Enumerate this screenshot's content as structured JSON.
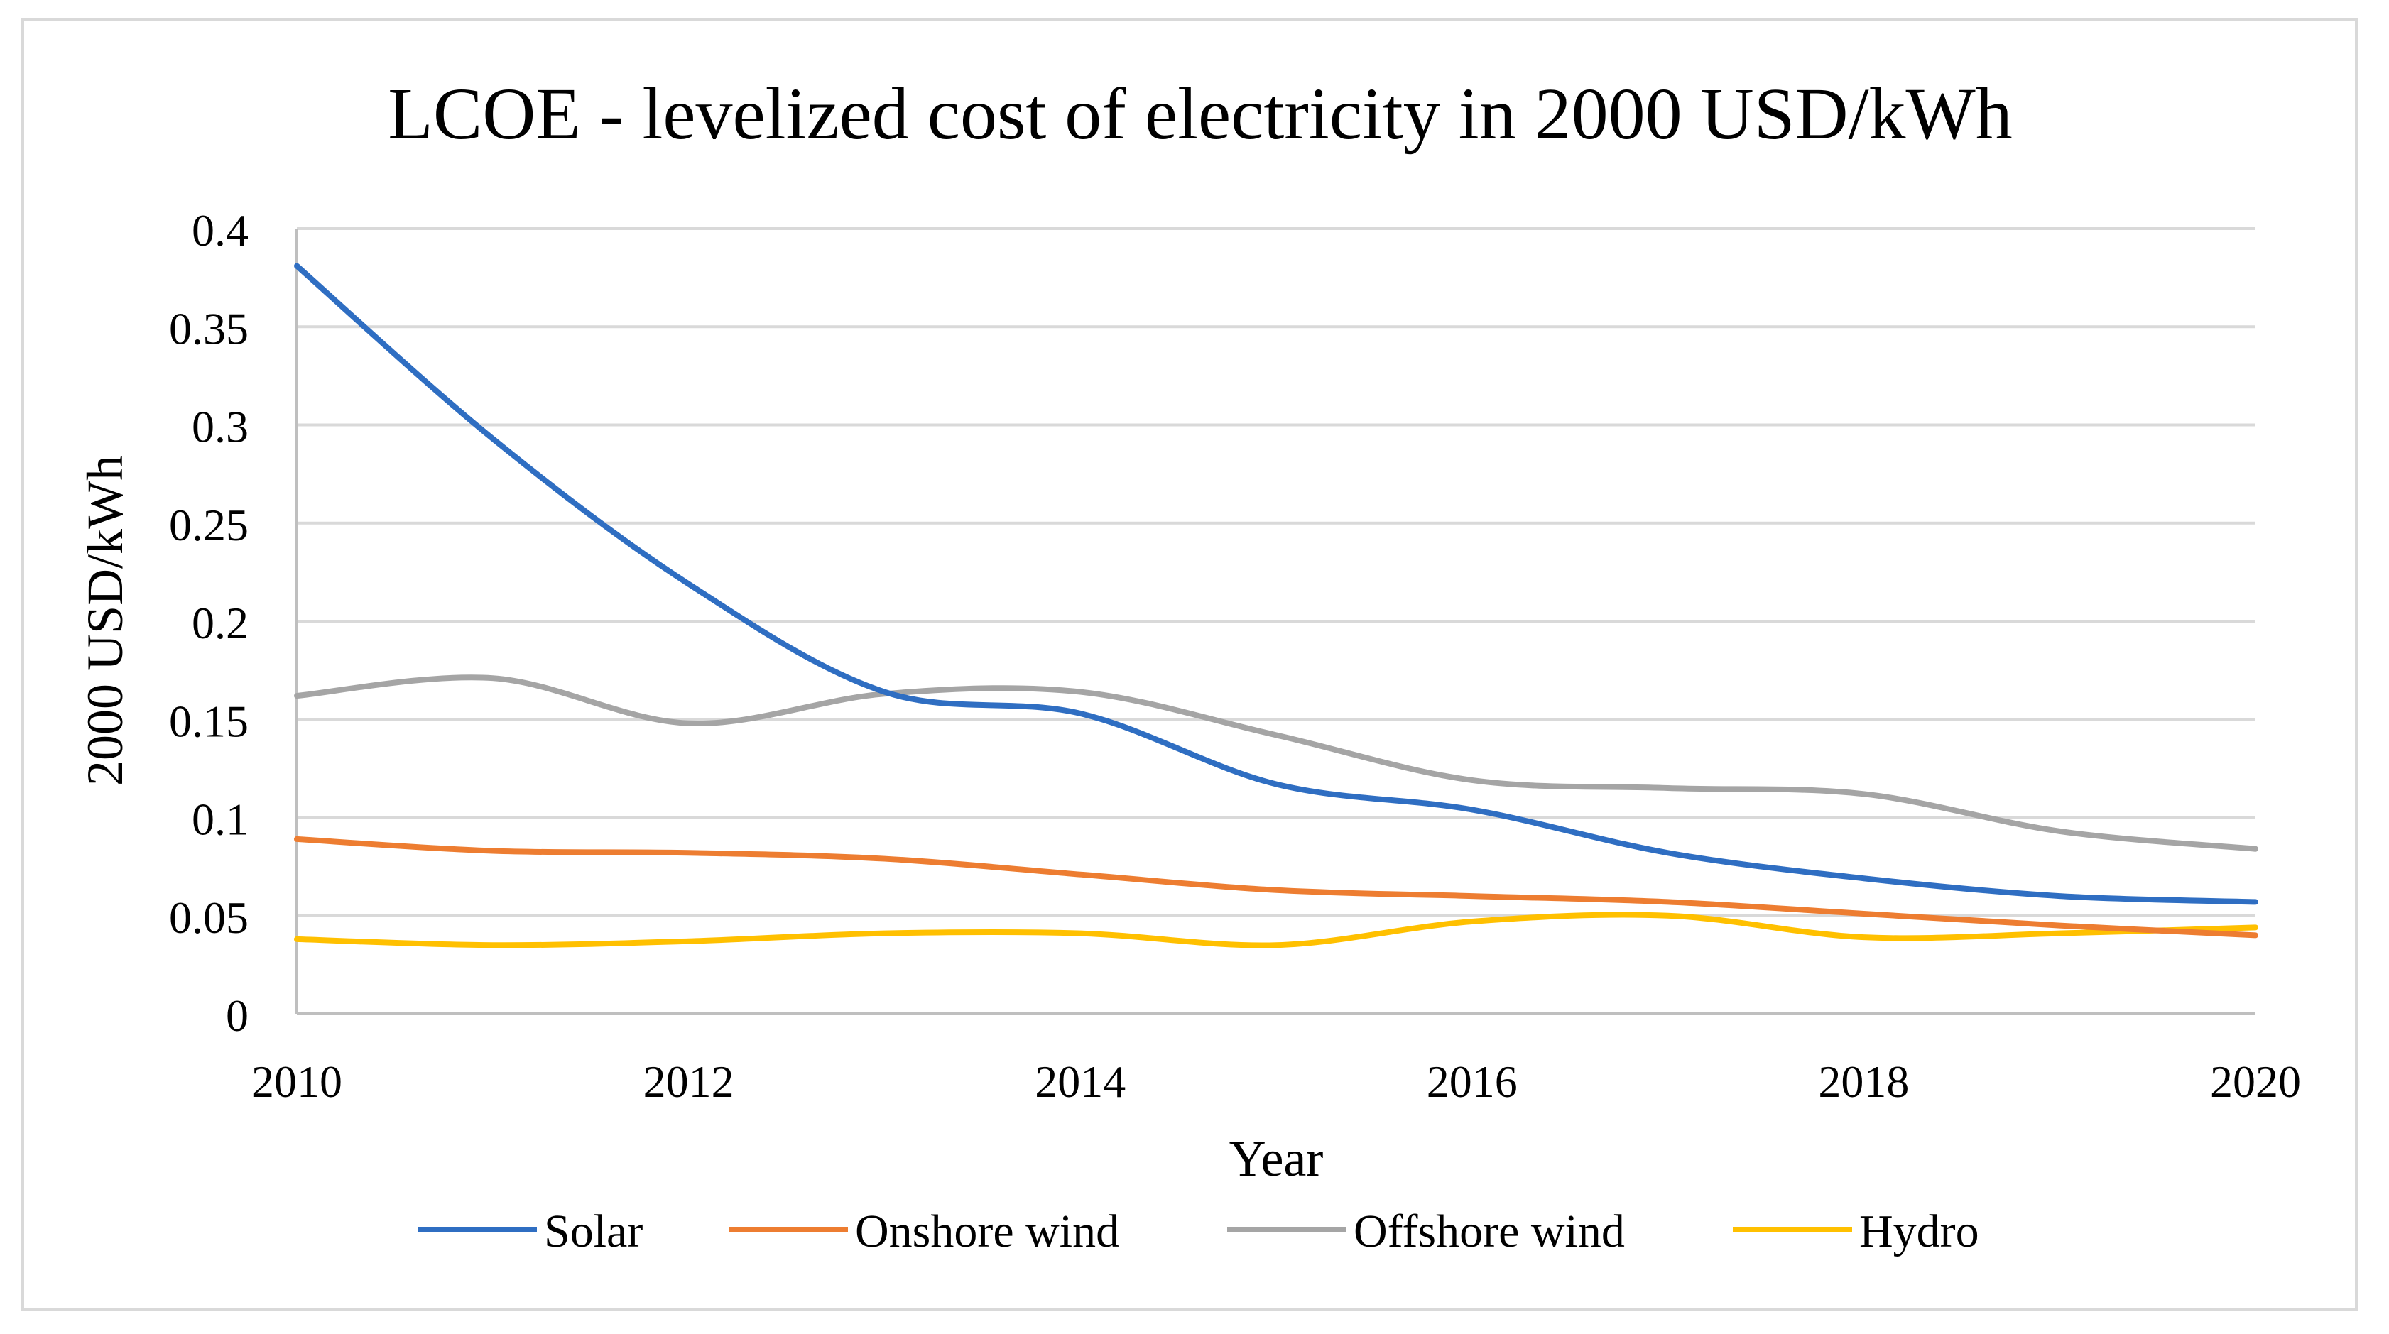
{
  "chart_data": {
    "type": "line",
    "title": "LCOE - levelized cost of electricity in 2000 USD/kWh",
    "xlabel": "Year",
    "ylabel": "2000 USD/kWh",
    "x": [
      2010,
      2011,
      2012,
      2013,
      2014,
      2015,
      2016,
      2017,
      2018,
      2019,
      2020
    ],
    "x_ticks": [
      2010,
      2012,
      2014,
      2016,
      2018,
      2020
    ],
    "y_ticks": [
      0,
      0.05,
      0.1,
      0.15,
      0.2,
      0.25,
      0.3,
      0.35,
      0.4
    ],
    "y_tick_labels": [
      "0",
      "0.05",
      "0.1",
      "0.15",
      "0.2",
      "0.25",
      "0.3",
      "0.35",
      "0.4"
    ],
    "xlim": [
      2010,
      2020
    ],
    "ylim": [
      0,
      0.4
    ],
    "grid": "horizontal",
    "legend_position": "bottom",
    "series": [
      {
        "name": "Solar",
        "color": "#2f6ec2",
        "values": [
          0.381,
          0.293,
          0.219,
          0.164,
          0.153,
          0.117,
          0.104,
          0.082,
          0.069,
          0.06,
          0.057
        ]
      },
      {
        "name": "Onshore wind",
        "color": "#ed7d31",
        "values": [
          0.089,
          0.083,
          0.082,
          0.079,
          0.071,
          0.063,
          0.06,
          0.057,
          0.051,
          0.045,
          0.04
        ]
      },
      {
        "name": "Offshore wind",
        "color": "#a5a5a5",
        "values": [
          0.162,
          0.171,
          0.148,
          0.163,
          0.164,
          0.142,
          0.119,
          0.115,
          0.112,
          0.093,
          0.084
        ]
      },
      {
        "name": "Hydro",
        "color": "#ffc000",
        "values": [
          0.038,
          0.035,
          0.037,
          0.041,
          0.041,
          0.035,
          0.047,
          0.05,
          0.039,
          0.041,
          0.044
        ]
      }
    ]
  }
}
